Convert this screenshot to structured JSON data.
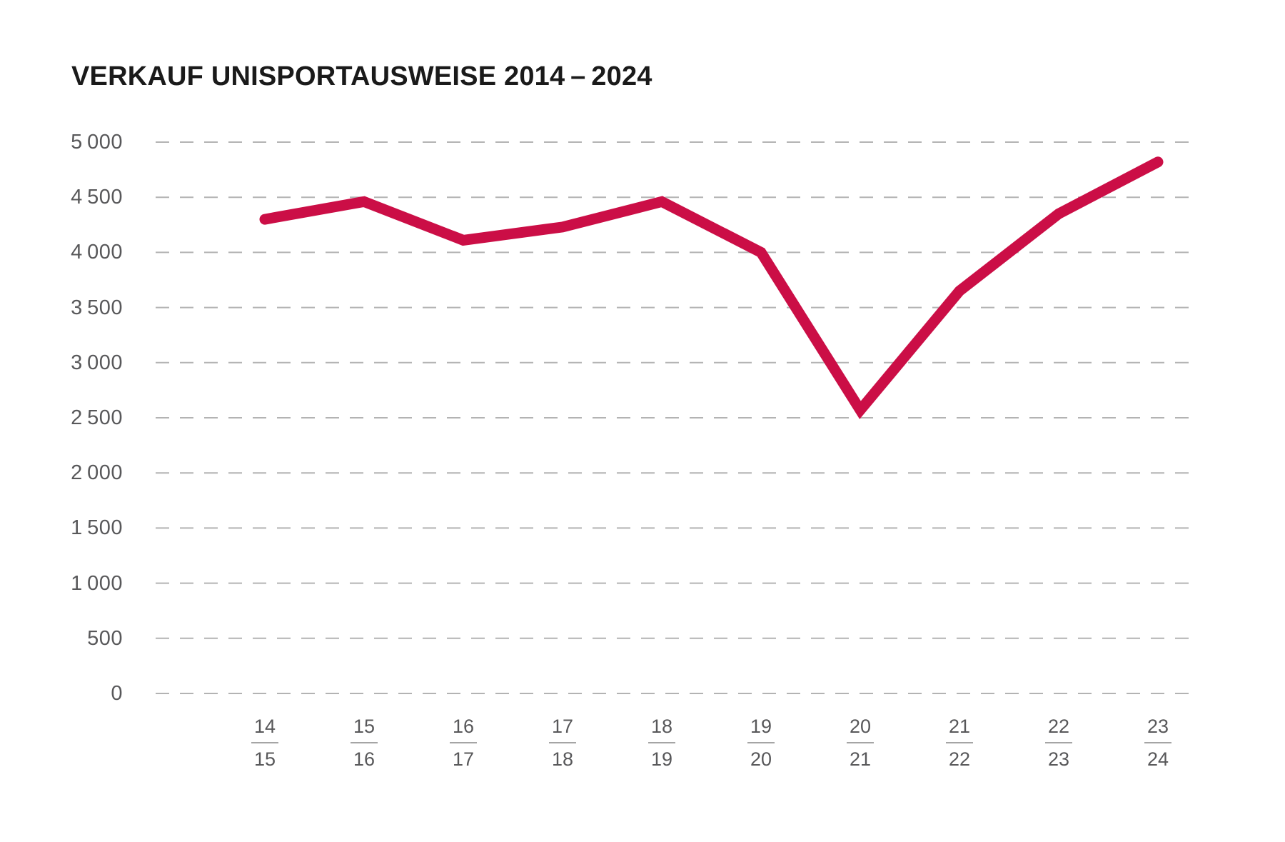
{
  "page": {
    "background_color": "#ffffff"
  },
  "chart_data": {
    "type": "line",
    "title": "VERKAUF UNISPORTAUSWEISE 2014 – 2024",
    "categories": [
      {
        "top": "14",
        "bottom": "15"
      },
      {
        "top": "15",
        "bottom": "16"
      },
      {
        "top": "16",
        "bottom": "17"
      },
      {
        "top": "17",
        "bottom": "18"
      },
      {
        "top": "18",
        "bottom": "19"
      },
      {
        "top": "19",
        "bottom": "20"
      },
      {
        "top": "20",
        "bottom": "21"
      },
      {
        "top": "21",
        "bottom": "22"
      },
      {
        "top": "22",
        "bottom": "23"
      },
      {
        "top": "23",
        "bottom": "24"
      }
    ],
    "values": [
      4300,
      4460,
      4110,
      4230,
      4460,
      4000,
      2570,
      3650,
      4350,
      4820
    ],
    "ylim": [
      0,
      5000
    ],
    "ytick_step": 500,
    "yticks": [
      {
        "value": 5000,
        "label": "5 000"
      },
      {
        "value": 4500,
        "label": "4 500"
      },
      {
        "value": 4000,
        "label": "4 000"
      },
      {
        "value": 3500,
        "label": "3 500"
      },
      {
        "value": 3000,
        "label": "3 000"
      },
      {
        "value": 2500,
        "label": "2 500"
      },
      {
        "value": 2000,
        "label": "2 000"
      },
      {
        "value": 1500,
        "label": "1 500"
      },
      {
        "value": 1000,
        "label": "1 000"
      },
      {
        "value": 500,
        "label": "500"
      },
      {
        "value": 0,
        "label": "0"
      }
    ],
    "xlabel": "",
    "ylabel": "",
    "grid": "horizontal-dashed",
    "legend": "none",
    "line_color": "#CB0E46",
    "grid_color": "#b3b3b3",
    "axis_label_color": "#58585a",
    "title_color": "#1a1a1a"
  }
}
